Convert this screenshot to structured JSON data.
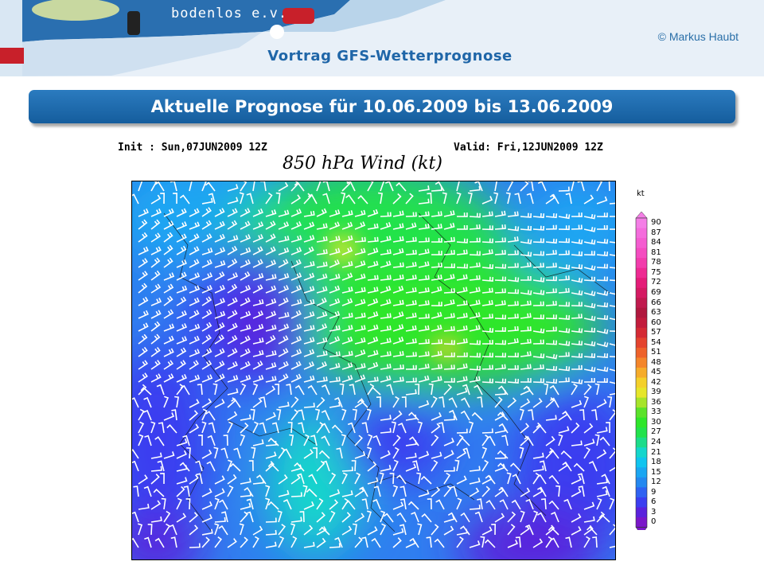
{
  "header": {
    "brand": "bodenlos e.v.",
    "copyright": "© Markus Haubt",
    "subtitle": "Vortrag GFS-Wetterprognose"
  },
  "slide": {
    "title": "Aktuelle Prognose für 10.06.2009 bis 13.06.2009"
  },
  "map": {
    "init_label": "Init : Sun,07JUN2009 12Z",
    "valid_label": "Valid: Fri,12JUN2009 12Z",
    "title": "850 hPa Wind (kt)",
    "legend": {
      "units": "kt",
      "ticks": [
        "0",
        "3",
        "6",
        "9",
        "12",
        "15",
        "18",
        "21",
        "24",
        "27",
        "30",
        "33",
        "36",
        "39",
        "42",
        "45",
        "48",
        "51",
        "54",
        "57",
        "60",
        "63",
        "66",
        "69",
        "72",
        "75",
        "78",
        "81",
        "84",
        "87",
        "90"
      ],
      "colors": [
        "#7a16c9",
        "#5a22dc",
        "#3b3ef0",
        "#2f62f2",
        "#2488f0",
        "#1aa6f2",
        "#10c4ef",
        "#14d6cc",
        "#1cdc8a",
        "#22e24c",
        "#2ee62a",
        "#5ae22a",
        "#a6e42a",
        "#e6e62a",
        "#f4d02a",
        "#f6ac2a",
        "#f4862a",
        "#ee622a",
        "#e4442e",
        "#d42a34",
        "#c21c3c",
        "#b0183e",
        "#c01a4e",
        "#d41a62",
        "#e41c78",
        "#ee2a92",
        "#f23cac",
        "#f44cc0",
        "#f45cd0",
        "#f46cdc",
        "#f47ee6"
      ]
    }
  }
}
